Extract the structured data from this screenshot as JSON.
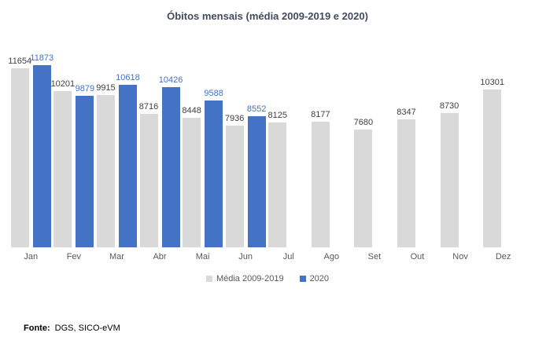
{
  "chart_data": {
    "type": "bar",
    "title": "Óbitos mensais (média 2009-2019 e 2020)",
    "categories": [
      "Jan",
      "Fev",
      "Mar",
      "Abr",
      "Mai",
      "Jun",
      "Jul",
      "Ago",
      "Set",
      "Out",
      "Nov",
      "Dez"
    ],
    "series": [
      {
        "name": "Média 2009-2019",
        "color": "#d9d9d9",
        "label_color": "#404040",
        "values": [
          11654,
          10201,
          9915,
          8716,
          8448,
          7936,
          8125,
          8177,
          7680,
          8347,
          8730,
          10301
        ]
      },
      {
        "name": "2020",
        "color": "#4472c4",
        "label_color": "#4472c4",
        "values": [
          11873,
          9879,
          10618,
          10426,
          9588,
          8552,
          null,
          null,
          null,
          null,
          null,
          null
        ]
      }
    ],
    "ylim": [
      0,
      12000
    ],
    "grid": false,
    "data_labels": true,
    "legend_position": "bottom",
    "xlabel": "",
    "ylabel": ""
  },
  "footer": {
    "label": "Fonte:",
    "text": "DGS, SICO-eVM"
  }
}
